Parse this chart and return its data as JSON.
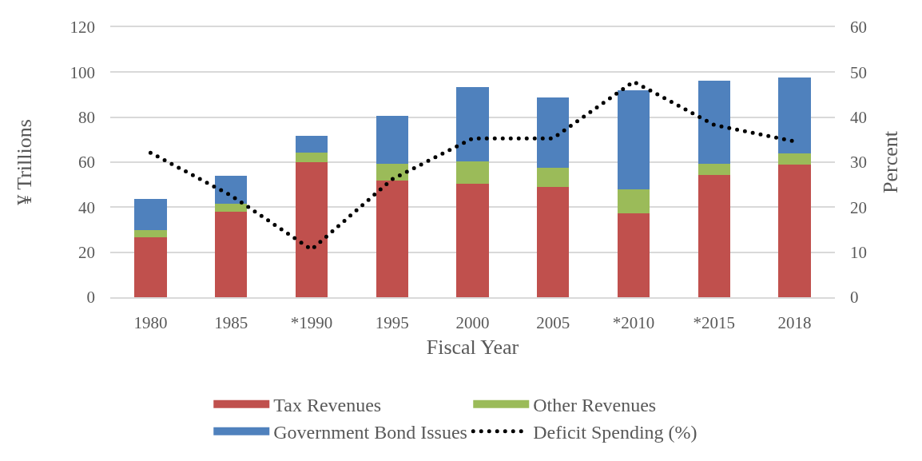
{
  "chart_data": {
    "type": "bar",
    "stacked": true,
    "xlabel": "Fiscal Year",
    "ylabel": "¥ Trillions",
    "y2label": "Percent",
    "categories": [
      "1980",
      "1985",
      "*1990",
      "1995",
      "2000",
      "2005",
      "*2010",
      "*2015",
      "2018"
    ],
    "series": [
      {
        "name": "Tax Revenues",
        "color": "#c0504d",
        "values": [
          26.6,
          38.0,
          60.1,
          51.8,
          50.4,
          48.9,
          37.3,
          54.4,
          59.0
        ]
      },
      {
        "name": "Other Revenues",
        "color": "#9bbb59",
        "values": [
          3.1,
          3.4,
          4.1,
          7.4,
          9.8,
          8.7,
          10.5,
          4.8,
          4.9
        ]
      },
      {
        "name": "Government Bond Issues",
        "color": "#4f81bd",
        "values": [
          14.1,
          12.4,
          7.4,
          21.3,
          33.1,
          31.2,
          44.3,
          37.1,
          33.7
        ]
      },
      {
        "name": "Deficit Spending (%)",
        "type": "line",
        "axis": "y2",
        "color": "#000000",
        "line_style": "dotted",
        "values": [
          32.1,
          22.6,
          10.6,
          26.2,
          35.3,
          35.3,
          47.9,
          38.3,
          34.6
        ]
      }
    ],
    "ylim": [
      0,
      120
    ],
    "yticks": [
      0,
      20,
      40,
      60,
      80,
      100,
      120
    ],
    "y2lim": [
      0,
      60
    ],
    "y2ticks": [
      0,
      10,
      20,
      30,
      40,
      50,
      60
    ],
    "grid": "y",
    "legend": "bottom"
  }
}
